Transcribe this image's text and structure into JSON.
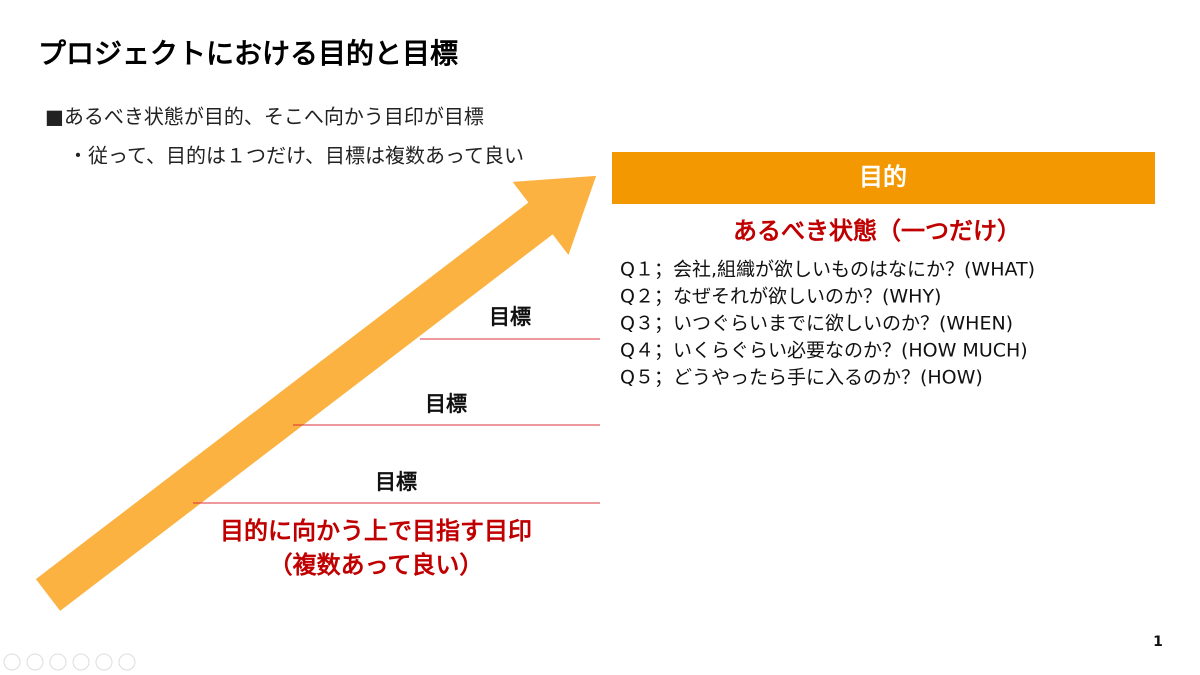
{
  "slide": {
    "title": "プロジェクトにおける目的と目標",
    "bullets": [
      "■あるべき状態が目的、そこへ向かう目印が目標",
      "・従って、目的は１つだけ、目標は複数あって良い"
    ],
    "purpose": {
      "header": "目的",
      "subtitle": "あるべき状態（一つだけ）",
      "questions": [
        "Q１；会社,組織が欲しいものはなにか？(WHAT)",
        "Q２；なぜそれが欲しいのか？(WHY)",
        "Q３；いつぐらいまでに欲しいのか？(WHEN)",
        "Q４；いくらぐらい必要なのか？(HOW MUCH)",
        "Q５；どうやったら手に入るのか？(HOW)"
      ]
    },
    "goals": [
      "目標",
      "目標",
      "目標"
    ],
    "caption": [
      "目的に向かう上で目指す目印",
      "（複数あって良い）"
    ],
    "page_number": "1"
  }
}
